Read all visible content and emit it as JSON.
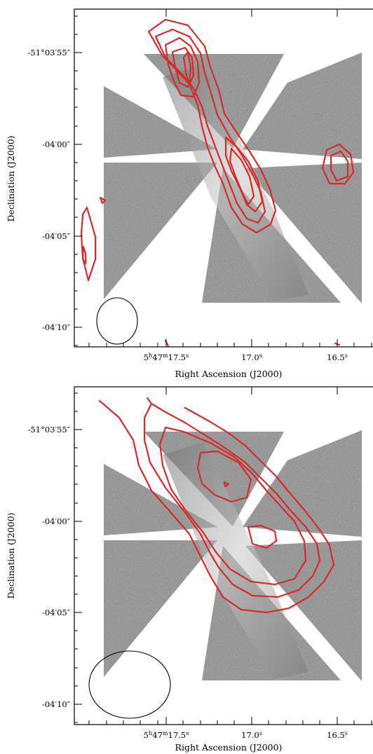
{
  "chart_data": [
    {
      "type": "contour",
      "panel": "top",
      "xlabel": "Right Ascension (J2000)",
      "ylabel": "Declination (J2000)",
      "x_ticks": [
        {
          "ra_s": 17.5,
          "label_main": "5",
          "sup_h": "h",
          "mid": "47",
          "sup_m": "m",
          "sec": "17.5",
          "sup_s": "s"
        },
        {
          "ra_s": 17.0,
          "label_main": "17.0",
          "sup_s": "s"
        },
        {
          "ra_s": 16.5,
          "label_main": "16.5",
          "sup_s": "s"
        }
      ],
      "y_ticks": [
        "-51°03′55″",
        "-04′00″",
        "-04′05″",
        "-04′10″"
      ],
      "y_tick_values_arcsec": [
        -55,
        -60,
        -65,
        -70
      ],
      "xlim_ra_s": [
        17.95,
        16.35
      ],
      "ylim_dec_arcsec": [
        -71.2,
        -51.7
      ],
      "contour_color": "#d92a2a",
      "beam": "ellipse, lower-left"
    },
    {
      "type": "contour",
      "panel": "bottom",
      "xlabel": "Right Ascension (J2000)",
      "ylabel": "Declination (J2000)",
      "x_ticks": [
        {
          "ra_s": 17.5,
          "label_main": "5",
          "sup_h": "h",
          "mid": "47",
          "sup_m": "m",
          "sec": "17.5",
          "sup_s": "s"
        },
        {
          "ra_s": 17.0,
          "label_main": "17.0",
          "sup_s": "s"
        },
        {
          "ra_s": 16.5,
          "label_main": "16.5",
          "sup_s": "s"
        }
      ],
      "y_ticks": [
        "-51°03′55″",
        "-04′00″",
        "-04′05″",
        "-04′10″"
      ],
      "y_tick_values_arcsec": [
        -55,
        -60,
        -65,
        -70
      ],
      "xlim_ra_s": [
        17.95,
        16.35
      ],
      "ylim_dec_arcsec": [
        -71.2,
        -51.7
      ],
      "contour_color": "#d92a2a",
      "beam": "ellipse, lower-left"
    }
  ]
}
